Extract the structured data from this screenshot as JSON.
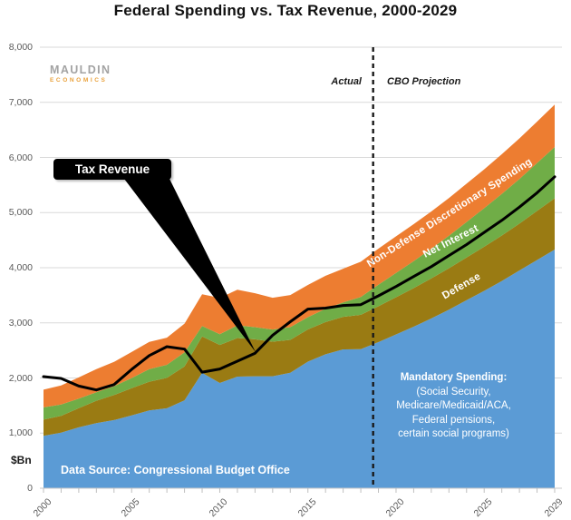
{
  "title": "Federal Spending vs. Tax Revenue, 2000-2029",
  "logo": {
    "line1": "MAULDIN",
    "line2": "ECONOMICS"
  },
  "annotations": {
    "actual_label": "Actual",
    "projection_label": "CBO Projection",
    "tax_revenue_callout": "Tax Revenue",
    "data_source": "Data Source: Congressional Budget Office",
    "mandatory_note_lines": [
      "Mandatory Spending:",
      "(Social Security,",
      "Medicare/Medicaid/ACA,",
      "Federal pensions,",
      "certain social programs)"
    ],
    "band_label_non_defense": "Non-Defense Discretionary Spending",
    "band_label_net_interest": "Net Interest",
    "band_label_defense": "Defense"
  },
  "axes": {
    "y_unit": "$Bn",
    "y_ticks": [
      {
        "value": 0,
        "label": "0"
      },
      {
        "value": 1000,
        "label": "1,000"
      },
      {
        "value": 2000,
        "label": "2,000"
      },
      {
        "value": 3000,
        "label": "3,000"
      },
      {
        "value": 4000,
        "label": "4,000"
      },
      {
        "value": 5000,
        "label": "5,000"
      },
      {
        "value": 6000,
        "label": "6,000"
      },
      {
        "value": 7000,
        "label": "7,000"
      },
      {
        "value": 8000,
        "label": "8,000"
      }
    ],
    "x_ticks": [
      {
        "year": 2000,
        "label": "2000"
      },
      {
        "year": 2005,
        "label": "2005"
      },
      {
        "year": 2010,
        "label": "2010"
      },
      {
        "year": 2015,
        "label": "2015"
      },
      {
        "year": 2020,
        "label": "2020"
      },
      {
        "year": 2025,
        "label": "2025"
      },
      {
        "year": 2029,
        "label": "2029"
      }
    ]
  },
  "colors": {
    "mandatory": "#5B9BD5",
    "defense": "#9A7B13",
    "net_interest": "#70AD47",
    "non_defense": "#ED7D31",
    "tax_revenue_line": "#000000",
    "gridline": "#DADADA",
    "axis": "#C9C9C9",
    "tick": "#BFBFBF",
    "divider": "#1a1a1a"
  },
  "chart_data": {
    "type": "area",
    "stacked": true,
    "title": "Federal Spending vs. Tax Revenue, 2000-2029",
    "ylabel": "$Bn",
    "ylim": [
      0,
      8000
    ],
    "grid": true,
    "divider_year": 2018.7,
    "x": [
      2000,
      2001,
      2002,
      2003,
      2004,
      2005,
      2006,
      2007,
      2008,
      2009,
      2010,
      2011,
      2012,
      2013,
      2014,
      2015,
      2016,
      2017,
      2018,
      2019,
      2020,
      2021,
      2022,
      2023,
      2024,
      2025,
      2026,
      2027,
      2028,
      2029
    ],
    "series": [
      {
        "name": "Mandatory Spending",
        "color": "#5B9BD5",
        "values": [
          951,
          1008,
          1105,
          1182,
          1237,
          1320,
          1412,
          1450,
          1595,
          2093,
          1910,
          2025,
          2031,
          2032,
          2096,
          2297,
          2429,
          2519,
          2523,
          2650,
          2790,
          2930,
          3080,
          3240,
          3410,
          3580,
          3760,
          3950,
          4140,
          4330
        ]
      },
      {
        "name": "Defense",
        "color": "#9A7B13",
        "values": [
          294,
          306,
          349,
          405,
          454,
          494,
          520,
          551,
          616,
          661,
          689,
          699,
          671,
          626,
          596,
          583,
          585,
          590,
          622,
          650,
          675,
          700,
          725,
          750,
          775,
          800,
          825,
          850,
          890,
          930
        ]
      },
      {
        "name": "Net Interest",
        "color": "#70AD47",
        "values": [
          222,
          206,
          171,
          153,
          160,
          184,
          227,
          237,
          253,
          187,
          196,
          230,
          220,
          221,
          229,
          223,
          240,
          263,
          325,
          390,
          440,
          490,
          540,
          590,
          645,
          700,
          755,
          810,
          870,
          930
        ]
      },
      {
        "name": "Non-Defense Discretionary Spending",
        "color": "#ED7D31",
        "values": [
          320,
          343,
          385,
          420,
          441,
          473,
          496,
          493,
          522,
          577,
          658,
          646,
          615,
          576,
          583,
          585,
          600,
          610,
          639,
          655,
          665,
          670,
          675,
          685,
          695,
          705,
          720,
          735,
          750,
          770
        ]
      }
    ],
    "line_series": {
      "name": "Tax Revenue",
      "color": "#000000",
      "values": [
        2025,
        1991,
        1853,
        1782,
        1880,
        2154,
        2407,
        2568,
        2524,
        2105,
        2163,
        2304,
        2450,
        2775,
        3021,
        3250,
        3268,
        3316,
        3330,
        3490,
        3660,
        3840,
        4020,
        4220,
        4420,
        4640,
        4860,
        5100,
        5360,
        5650
      ]
    }
  }
}
